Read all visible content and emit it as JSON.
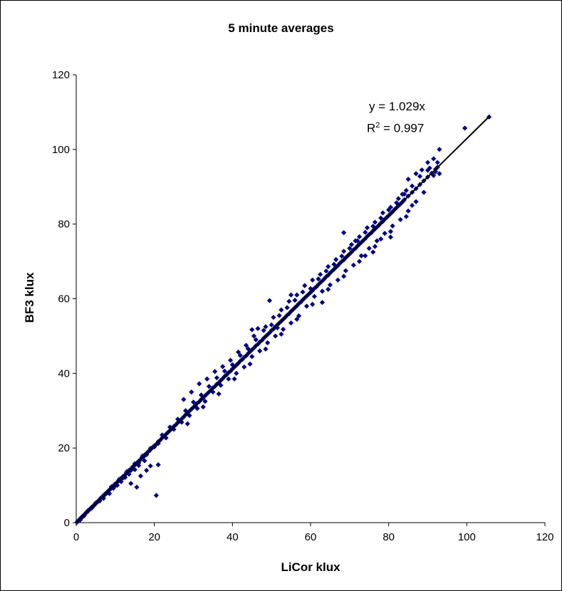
{
  "chart_data": {
    "type": "scatter",
    "title": "5 minute averages",
    "xlabel": "LiCor klux",
    "ylabel": "BF3 klux",
    "xlim": [
      0,
      120
    ],
    "ylim": [
      0,
      120
    ],
    "xticks": [
      "0",
      "20",
      "40",
      "60",
      "80",
      "100",
      "120"
    ],
    "yticks": [
      "0",
      "20",
      "40",
      "60",
      "80",
      "100",
      "120"
    ],
    "grid": false,
    "marker_color": "#000080",
    "trendline": {
      "slope": 1.029,
      "intercept": 0,
      "x_range": [
        0,
        105.7
      ],
      "color": "#000000",
      "equation_label": "y = 1.029x",
      "r2_prefix": "R",
      "r2_exp": "2",
      "r2_suffix": " = 0.997"
    },
    "points": [
      [
        0.2,
        0.1
      ],
      [
        0.4,
        0.4
      ],
      [
        0.6,
        0.5
      ],
      [
        0.9,
        0.9
      ],
      [
        1.1,
        1.2
      ],
      [
        1.4,
        1.3
      ],
      [
        1.6,
        1.7
      ],
      [
        1.9,
        2.0
      ],
      [
        2.1,
        2.1
      ],
      [
        2.4,
        2.5
      ],
      [
        2.6,
        2.8
      ],
      [
        2.9,
        2.9
      ],
      [
        3.1,
        3.3
      ],
      [
        3.4,
        3.5
      ],
      [
        3.6,
        3.7
      ],
      [
        3.9,
        4.1
      ],
      [
        4.2,
        4.3
      ],
      [
        4.5,
        4.5
      ],
      [
        4.8,
        5.0
      ],
      [
        5.1,
        5.2
      ],
      [
        5.4,
        5.5
      ],
      [
        5.7,
        5.9
      ],
      [
        6.0,
        6.1
      ],
      [
        6.3,
        6.6
      ],
      [
        6.6,
        6.8
      ],
      [
        6.9,
        7.0
      ],
      [
        7.2,
        7.5
      ],
      [
        7.5,
        7.6
      ],
      [
        7.8,
        8.1
      ],
      [
        8.1,
        8.4
      ],
      [
        8.4,
        8.6
      ],
      [
        8.7,
        9.0
      ],
      [
        9.0,
        9.3
      ],
      [
        9.3,
        9.7
      ],
      [
        9.6,
        9.8
      ],
      [
        9.9,
        10.3
      ],
      [
        10.2,
        10.5
      ],
      [
        10.5,
        10.8
      ],
      [
        10.8,
        11.2
      ],
      [
        11.1,
        11.4
      ],
      [
        11.4,
        11.8
      ],
      [
        11.7,
        12.0
      ],
      [
        12.0,
        12.4
      ],
      [
        12.4,
        12.6
      ],
      [
        12.8,
        13.3
      ],
      [
        13.2,
        13.5
      ],
      [
        13.6,
        14.1
      ],
      [
        14.0,
        14.3
      ],
      [
        14.4,
        14.9
      ],
      [
        14.8,
        15.2
      ],
      [
        15.2,
        15.7
      ],
      [
        15.6,
        16.0
      ],
      [
        16.0,
        16.5
      ],
      [
        16.4,
        16.8
      ],
      [
        16.8,
        17.4
      ],
      [
        17.2,
        17.6
      ],
      [
        17.6,
        18.2
      ],
      [
        18.0,
        18.5
      ],
      [
        18.4,
        19.0
      ],
      [
        18.8,
        19.3
      ],
      [
        19.2,
        19.8
      ],
      [
        19.6,
        20.2
      ],
      [
        20.0,
        20.6
      ],
      [
        20.5,
        21.0
      ],
      [
        21.0,
        21.7
      ],
      [
        21.5,
        22.1
      ],
      [
        22.0,
        22.7
      ],
      [
        22.5,
        23.1
      ],
      [
        23.0,
        23.7
      ],
      [
        23.5,
        24.2
      ],
      [
        24.0,
        24.7
      ],
      [
        24.5,
        25.2
      ],
      [
        25.0,
        25.8
      ],
      [
        25.5,
        26.2
      ],
      [
        26.0,
        26.8
      ],
      [
        26.5,
        27.2
      ],
      [
        27.0,
        27.8
      ],
      [
        27.5,
        28.3
      ],
      [
        28.0,
        28.9
      ],
      [
        28.5,
        29.3
      ],
      [
        29.0,
        29.9
      ],
      [
        29.5,
        30.4
      ],
      [
        30.0,
        30.9
      ],
      [
        30.5,
        31.4
      ],
      [
        31.0,
        32.0
      ],
      [
        31.5,
        32.4
      ],
      [
        32.0,
        33.0
      ],
      [
        32.5,
        33.4
      ],
      [
        33.0,
        34.0
      ],
      [
        33.5,
        34.5
      ],
      [
        34.0,
        35.0
      ],
      [
        34.5,
        35.5
      ],
      [
        35.0,
        36.1
      ],
      [
        35.5,
        36.5
      ],
      [
        36.0,
        37.1
      ],
      [
        36.5,
        37.5
      ],
      [
        37.0,
        38.1
      ],
      [
        37.5,
        38.6
      ],
      [
        38.0,
        39.2
      ],
      [
        38.5,
        39.6
      ],
      [
        39.0,
        40.2
      ],
      [
        39.5,
        40.6
      ],
      [
        40.0,
        41.2
      ],
      [
        40.5,
        41.7
      ],
      [
        41.0,
        42.2
      ],
      [
        41.5,
        42.7
      ],
      [
        42.0,
        43.3
      ],
      [
        42.5,
        43.7
      ],
      [
        43.0,
        44.3
      ],
      [
        43.5,
        44.7
      ],
      [
        44.0,
        45.3
      ],
      [
        44.5,
        45.8
      ],
      [
        45.0,
        46.3
      ],
      [
        45.5,
        46.8
      ],
      [
        46.0,
        47.4
      ],
      [
        46.5,
        47.8
      ],
      [
        47.0,
        48.4
      ],
      [
        47.5,
        48.8
      ],
      [
        48.0,
        49.4
      ],
      [
        48.5,
        49.9
      ],
      [
        49.0,
        50.4
      ],
      [
        49.5,
        50.9
      ],
      [
        50.0,
        51.5
      ],
      [
        50.5,
        51.9
      ],
      [
        51.0,
        52.5
      ],
      [
        51.5,
        53.0
      ],
      [
        52.0,
        53.5
      ],
      [
        52.5,
        54.0
      ],
      [
        53.0,
        54.5
      ],
      [
        53.5,
        55.0
      ],
      [
        54.0,
        55.6
      ],
      [
        54.5,
        56.0
      ],
      [
        55.0,
        56.6
      ],
      [
        55.5,
        57.1
      ],
      [
        56.0,
        57.6
      ],
      [
        56.5,
        58.1
      ],
      [
        57.0,
        58.7
      ],
      [
        57.5,
        59.1
      ],
      [
        58.0,
        59.7
      ],
      [
        58.5,
        60.2
      ],
      [
        59.0,
        60.7
      ],
      [
        59.5,
        61.2
      ],
      [
        60.0,
        61.7
      ],
      [
        60.5,
        62.2
      ],
      [
        61.0,
        62.8
      ],
      [
        61.5,
        63.2
      ],
      [
        62.0,
        63.8
      ],
      [
        62.5,
        64.3
      ],
      [
        63.0,
        64.8
      ],
      [
        63.5,
        65.3
      ],
      [
        64.0,
        65.9
      ],
      [
        64.5,
        66.3
      ],
      [
        65.0,
        66.9
      ],
      [
        65.5,
        67.4
      ],
      [
        66.0,
        67.9
      ],
      [
        66.5,
        68.4
      ],
      [
        67.0,
        68.9
      ],
      [
        67.5,
        69.5
      ],
      [
        68.0,
        70.0
      ],
      [
        68.5,
        70.4
      ],
      [
        69.0,
        71.0
      ],
      [
        69.5,
        71.5
      ],
      [
        70.0,
        72.0
      ],
      [
        70.5,
        72.5
      ],
      [
        71.0,
        73.1
      ],
      [
        71.5,
        73.5
      ],
      [
        72.0,
        74.1
      ],
      [
        72.5,
        74.6
      ],
      [
        73.0,
        75.1
      ],
      [
        73.5,
        75.6
      ],
      [
        74.0,
        76.1
      ],
      [
        74.5,
        76.7
      ],
      [
        75.0,
        77.2
      ],
      [
        75.5,
        77.6
      ],
      [
        76.0,
        78.2
      ],
      [
        76.5,
        78.7
      ],
      [
        77.0,
        79.2
      ],
      [
        77.5,
        79.7
      ],
      [
        78.0,
        80.3
      ],
      [
        78.5,
        80.7
      ],
      [
        79.0,
        81.3
      ],
      [
        79.5,
        81.8
      ],
      [
        80.0,
        82.3
      ],
      [
        80.5,
        82.8
      ],
      [
        81.0,
        83.3
      ],
      [
        81.5,
        83.9
      ],
      [
        82.0,
        84.4
      ],
      [
        82.5,
        84.9
      ],
      [
        83.0,
        85.4
      ],
      [
        83.5,
        85.9
      ],
      [
        84.0,
        86.5
      ],
      [
        85.0,
        87.5
      ],
      [
        86.0,
        88.5
      ],
      [
        87.0,
        89.5
      ],
      [
        88.0,
        90.6
      ],
      [
        89.0,
        91.6
      ],
      [
        90.0,
        92.6
      ],
      [
        91.0,
        93.6
      ],
      [
        92.0,
        94.7
      ],
      [
        92.5,
        95.2
      ],
      [
        1.0,
        0.7
      ],
      [
        2.0,
        1.8
      ],
      [
        3.0,
        3.2
      ],
      [
        4.0,
        3.9
      ],
      [
        5.0,
        5.3
      ],
      [
        6.0,
        5.8
      ],
      [
        7.0,
        7.3
      ],
      [
        8.0,
        8.0
      ],
      [
        9.0,
        9.6
      ],
      [
        10.0,
        9.9
      ],
      [
        11.0,
        11.6
      ],
      [
        12.0,
        12.0
      ],
      [
        13.0,
        13.7
      ],
      [
        14.0,
        14.0
      ],
      [
        15.0,
        15.8
      ],
      [
        16.0,
        16.0
      ],
      [
        17.0,
        17.9
      ],
      [
        18.0,
        18.2
      ],
      [
        19.0,
        19.9
      ],
      [
        20.0,
        20.3
      ],
      [
        7.0,
        6.5
      ],
      [
        8.5,
        7.8
      ],
      [
        9.5,
        9.2
      ],
      [
        10.5,
        10.0
      ],
      [
        11.5,
        11.0
      ],
      [
        12.5,
        12.1
      ],
      [
        13.5,
        13.0
      ],
      [
        15.0,
        14.2
      ],
      [
        16.0,
        15.3
      ],
      [
        17.5,
        16.6
      ],
      [
        14.0,
        10.5
      ],
      [
        15.5,
        9.5
      ],
      [
        20.5,
        7.3
      ],
      [
        19.0,
        15.2
      ],
      [
        18.0,
        14.0
      ],
      [
        16.5,
        12.5
      ],
      [
        21.0,
        15.5
      ],
      [
        21.0,
        21.2
      ],
      [
        22.0,
        23.5
      ],
      [
        23.0,
        22.7
      ],
      [
        24.0,
        25.6
      ],
      [
        25.0,
        25.0
      ],
      [
        26.0,
        27.7
      ],
      [
        27.0,
        26.9
      ],
      [
        28.0,
        30.0
      ],
      [
        29.0,
        28.7
      ],
      [
        30.0,
        32.3
      ],
      [
        31.0,
        30.6
      ],
      [
        32.0,
        34.2
      ],
      [
        33.0,
        32.5
      ],
      [
        34.0,
        36.5
      ],
      [
        35.0,
        35.0
      ],
      [
        36.0,
        38.8
      ],
      [
        37.0,
        36.8
      ],
      [
        38.0,
        40.6
      ],
      [
        39.0,
        38.5
      ],
      [
        40.0,
        42.3
      ],
      [
        41.0,
        40.0
      ],
      [
        42.0,
        44.8
      ],
      [
        43.0,
        41.7
      ],
      [
        44.0,
        46.6
      ],
      [
        45.0,
        44.5
      ],
      [
        46.0,
        49.0
      ],
      [
        47.0,
        46.0
      ],
      [
        48.0,
        51.5
      ],
      [
        49.0,
        48.2
      ],
      [
        50.0,
        53.0
      ],
      [
        51.0,
        50.0
      ],
      [
        52.0,
        55.5
      ],
      [
        53.0,
        51.8
      ],
      [
        54.0,
        57.6
      ],
      [
        55.0,
        53.5
      ],
      [
        56.0,
        59.6
      ],
      [
        57.0,
        55.4
      ],
      [
        58.0,
        61.8
      ],
      [
        59.0,
        58.0
      ],
      [
        60.0,
        62.7
      ],
      [
        61.0,
        60.6
      ],
      [
        62.0,
        65.3
      ],
      [
        63.0,
        62.0
      ],
      [
        64.0,
        67.4
      ],
      [
        65.0,
        63.7
      ],
      [
        66.0,
        69.2
      ],
      [
        67.0,
        65.0
      ],
      [
        68.0,
        71.4
      ],
      [
        69.0,
        67.5
      ],
      [
        70.0,
        73.5
      ],
      [
        71.0,
        69.0
      ],
      [
        72.0,
        75.5
      ],
      [
        73.0,
        71.5
      ],
      [
        74.0,
        77.8
      ],
      [
        75.0,
        73.5
      ],
      [
        76.0,
        79.4
      ],
      [
        77.0,
        75.5
      ],
      [
        78.0,
        81.6
      ],
      [
        79.0,
        77.5
      ],
      [
        80.0,
        83.8
      ],
      [
        81.0,
        79.5
      ],
      [
        82.0,
        85.7
      ],
      [
        83.0,
        81.2
      ],
      [
        84.0,
        88.0
      ],
      [
        85.0,
        83.5
      ],
      [
        86.0,
        90.2
      ],
      [
        87.0,
        86.0
      ],
      [
        88.0,
        92.8
      ],
      [
        89.0,
        88.5
      ],
      [
        90.0,
        94.4
      ],
      [
        27.5,
        33.0
      ],
      [
        29.5,
        35.0
      ],
      [
        31.5,
        37.2
      ],
      [
        33.5,
        38.5
      ],
      [
        35.5,
        40.5
      ],
      [
        37.5,
        41.8
      ],
      [
        39.5,
        43.5
      ],
      [
        41.5,
        45.7
      ],
      [
        43.5,
        47.5
      ],
      [
        45.5,
        50.0
      ],
      [
        46.5,
        52.0
      ],
      [
        48.5,
        52.5
      ],
      [
        50.5,
        55.0
      ],
      [
        52.5,
        57.0
      ],
      [
        54.5,
        59.3
      ],
      [
        56.5,
        61.0
      ],
      [
        58.5,
        63.5
      ],
      [
        60.5,
        65.0
      ],
      [
        62.5,
        66.5
      ],
      [
        64.5,
        68.6
      ],
      [
        66.5,
        70.5
      ],
      [
        68.5,
        72.7
      ],
      [
        70.5,
        74.5
      ],
      [
        72.5,
        76.6
      ],
      [
        74.5,
        79.0
      ],
      [
        76.5,
        80.5
      ],
      [
        78.5,
        83.0
      ],
      [
        80.5,
        84.5
      ],
      [
        82.5,
        86.8
      ],
      [
        84.5,
        89.0
      ],
      [
        28.5,
        26.5
      ],
      [
        32.5,
        31.0
      ],
      [
        36.5,
        34.5
      ],
      [
        40.5,
        38.5
      ],
      [
        44.5,
        42.5
      ],
      [
        48.5,
        46.5
      ],
      [
        52.5,
        50.5
      ],
      [
        56.5,
        54.5
      ],
      [
        60.5,
        58.5
      ],
      [
        64.5,
        62.5
      ],
      [
        68.5,
        66.0
      ],
      [
        72.5,
        70.0
      ],
      [
        76.5,
        74.0
      ],
      [
        80.5,
        78.0
      ],
      [
        84.5,
        82.0
      ],
      [
        63.0,
        59.0
      ],
      [
        74.0,
        71.5
      ],
      [
        78.0,
        76.0
      ],
      [
        80.5,
        76.5
      ],
      [
        86.0,
        85.0
      ],
      [
        49.5,
        59.5
      ],
      [
        51.5,
        52.2
      ],
      [
        45.0,
        51.7
      ],
      [
        55.0,
        61.0
      ],
      [
        68.5,
        77.7
      ],
      [
        71.5,
        75.5
      ],
      [
        76.0,
        72.5
      ],
      [
        83.5,
        88.0
      ],
      [
        85.0,
        92.0
      ],
      [
        87.0,
        93.5
      ],
      [
        88.5,
        94.5
      ],
      [
        90.5,
        95.0
      ],
      [
        91.5,
        93.0
      ],
      [
        92.5,
        96.5
      ],
      [
        93.0,
        100.0
      ],
      [
        92.0,
        94.0
      ],
      [
        93.0,
        93.5
      ],
      [
        91.5,
        97.5
      ],
      [
        90.0,
        96.5
      ],
      [
        99.5,
        105.7
      ],
      [
        105.7,
        108.7
      ]
    ]
  }
}
